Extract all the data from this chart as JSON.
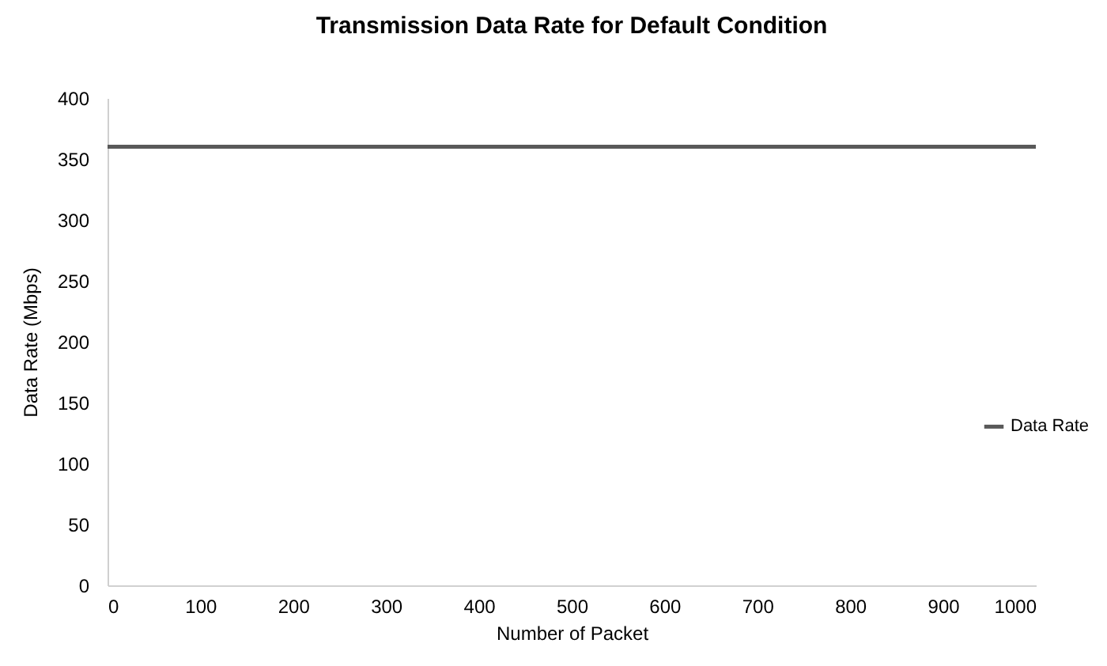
{
  "chart_data": {
    "type": "line",
    "title": "Transmission Data Rate for Default Condition",
    "xlabel": "Number of Packet",
    "ylabel": "Data Rate (Mbps)",
    "x": [
      0,
      1000
    ],
    "series": [
      {
        "name": "Data Rate",
        "color": "#595959",
        "values": [
          360,
          360
        ]
      }
    ],
    "xlim": [
      0,
      1000
    ],
    "xticks": [
      0,
      100,
      200,
      300,
      400,
      500,
      600,
      700,
      800,
      900,
      1000
    ],
    "ylim": [
      0,
      400
    ],
    "yticks": [
      0,
      50,
      100,
      150,
      200,
      250,
      300,
      350,
      400
    ],
    "grid": false,
    "legend": "right",
    "marker": "none",
    "line_style": "solid"
  }
}
